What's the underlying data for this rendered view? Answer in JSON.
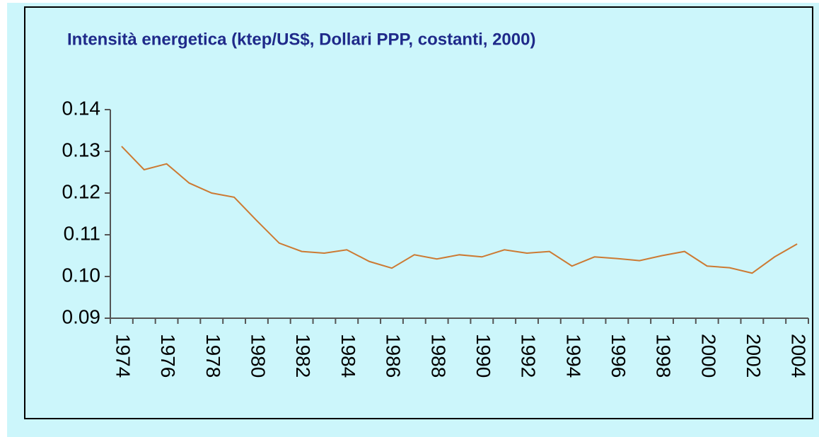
{
  "chart_data": {
    "type": "line",
    "title": "Intensità energetica (ktep/US$, Dollari PPP, costanti, 2000)",
    "categories": [
      "1974",
      null,
      "1976",
      null,
      "1978",
      null,
      "1980",
      null,
      "1982",
      null,
      "1984",
      null,
      "1986",
      null,
      "1988",
      null,
      "1990",
      null,
      "1992",
      null,
      "1994",
      null,
      "1996",
      null,
      "1998",
      null,
      "2000",
      null,
      "2002",
      null,
      "2004"
    ],
    "series": [
      {
        "name": "Intensità energetica",
        "color": "#cc7a33",
        "values": [
          0.1312,
          0.1256,
          0.127,
          0.1224,
          0.12,
          0.119,
          0.1134,
          0.108,
          0.106,
          0.1056,
          0.1064,
          0.1036,
          0.102,
          0.1052,
          0.1042,
          0.1052,
          0.1047,
          0.1064,
          0.1056,
          0.106,
          0.1025,
          0.1047,
          0.1043,
          0.1038,
          0.105,
          0.106,
          0.1025,
          0.1021,
          0.1008,
          0.1047,
          0.1078
        ]
      }
    ],
    "ylim": [
      0.09,
      0.14
    ],
    "yticks": [
      0.09,
      {
        "value": 0.1,
        "label": "0.10"
      },
      0.11,
      0.12,
      0.13,
      0.14
    ]
  }
}
